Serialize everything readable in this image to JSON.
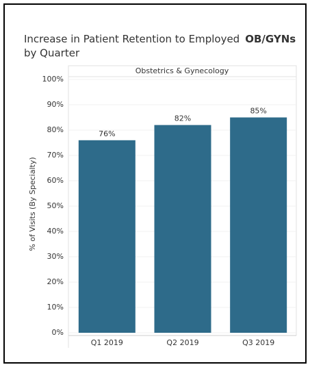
{
  "chart_data": {
    "type": "bar",
    "title": "Increase in Patient Retention to Employed",
    "title_emphasis": "OB/GYNs",
    "title_line2": "by Quarter",
    "panel_header": "Obstetrics & Gynecology",
    "y_label": "% of Visits (By Specialty)",
    "categories": [
      "Q1 2019",
      "Q2 2019",
      "Q3 2019"
    ],
    "values": [
      76,
      82,
      85
    ],
    "value_labels": [
      "76%",
      "82%",
      "85%"
    ],
    "color": "#2e6b8a",
    "ylim": [
      0,
      100
    ],
    "yticks": [
      {
        "value": 0,
        "label": "0%"
      },
      {
        "value": 10,
        "label": "10%"
      },
      {
        "value": 20,
        "label": "20%"
      },
      {
        "value": 30,
        "label": "30%"
      },
      {
        "value": 40,
        "label": "40%"
      },
      {
        "value": 50,
        "label": "50%"
      },
      {
        "value": 60,
        "label": "60%"
      },
      {
        "value": 70,
        "label": "70%"
      },
      {
        "value": 80,
        "label": "80%"
      },
      {
        "value": 90,
        "label": "90%"
      },
      {
        "value": 100,
        "label": "100%"
      }
    ],
    "grid": true
  }
}
